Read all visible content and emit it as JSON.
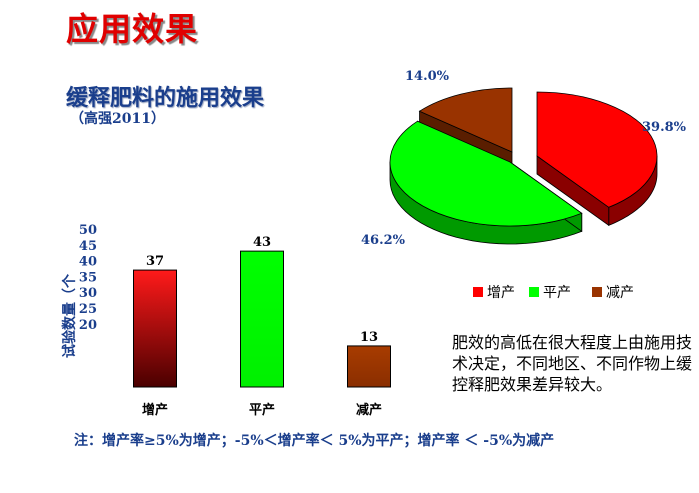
{
  "header": {
    "title": "应用效果",
    "subtitle": "缓释肥料的施用效果",
    "caption": "（高强2011）"
  },
  "description": "肥效的高低在很大程度上由施用技术决定，不同地区、不同作物上缓控释肥效果差异较大。",
  "note": "注：增产率≥5%为增产；-5%＜增产率＜ 5%为平产；增产率 ＜ -5%为减产",
  "chart_data": [
    {
      "type": "bar",
      "categories": [
        "增产",
        "平产",
        "减产"
      ],
      "values": [
        37,
        43,
        13
      ],
      "ylabel": "试验数量（个",
      "ylim": [
        0,
        50
      ],
      "yticks": [
        20,
        25,
        30,
        35,
        40,
        45,
        50
      ],
      "colors": [
        "#e00000",
        "#00ff00",
        "#a33a00"
      ],
      "grid": false
    },
    {
      "type": "pie",
      "labels": [
        "增产",
        "平产",
        "减产"
      ],
      "values": [
        39.8,
        46.2,
        14.0
      ],
      "value_labels": [
        "39.8%",
        "46.2%",
        "14.0%"
      ],
      "colors": [
        "#ff0000",
        "#00ff00",
        "#993300"
      ],
      "side_colors": [
        "#8a0000",
        "#009a00",
        "#5a1e00"
      ],
      "legend": "bottom",
      "exploded": true,
      "three_d": true
    }
  ]
}
